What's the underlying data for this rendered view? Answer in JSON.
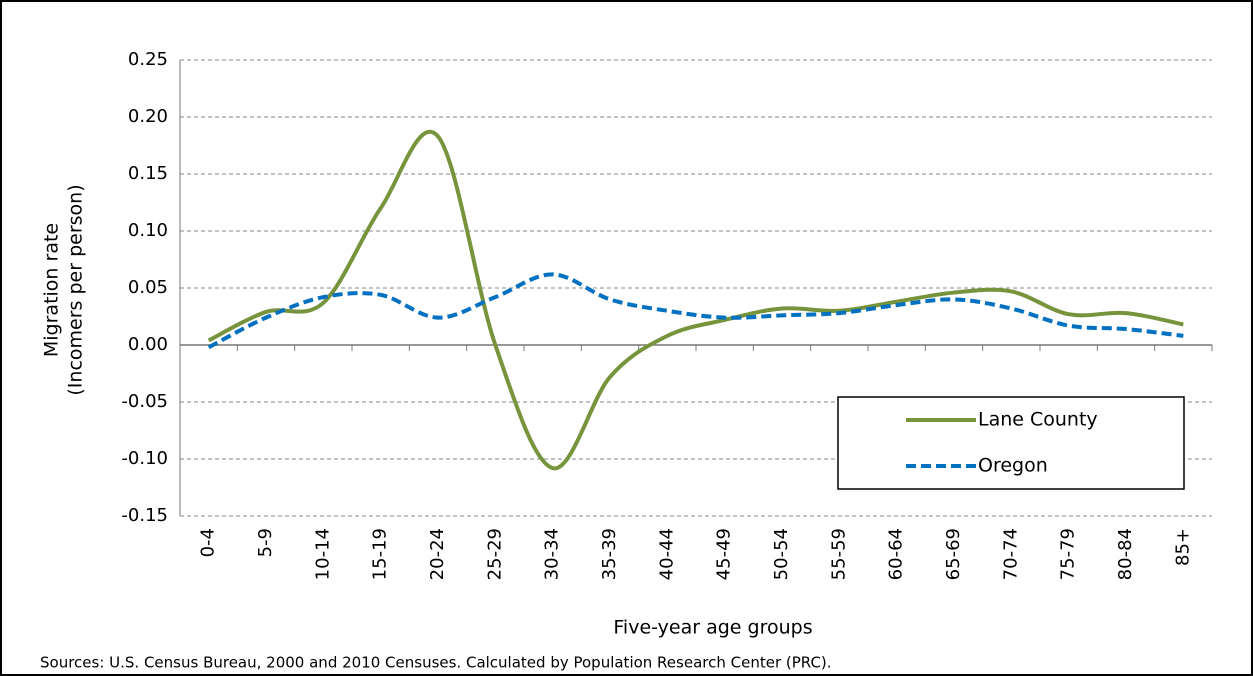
{
  "chart_data": {
    "type": "line",
    "y_label": [
      "Migration rate",
      "(Incomers per person)"
    ],
    "x_label": "Five-year age groups",
    "source": "Sources: U.S. Census Bureau, 2000 and 2010 Censuses. Calculated by Population Research  Center (PRC).",
    "categories": [
      "0-4",
      "5-9",
      "10-14",
      "15-19",
      "20-24",
      "25-29",
      "30-34",
      "35-39",
      "40-44",
      "45-49",
      "50-54",
      "55-59",
      "60-64",
      "65-69",
      "70-74",
      "75-79",
      "80-84",
      "85+"
    ],
    "series": [
      {
        "name": "Lane County",
        "color": "#77933c",
        "dash": "solid",
        "values": [
          0.004,
          0.029,
          0.037,
          0.12,
          0.183,
          0.0,
          -0.108,
          -0.028,
          0.008,
          0.022,
          0.032,
          0.03,
          0.038,
          0.046,
          0.047,
          0.027,
          0.028,
          0.018
        ]
      },
      {
        "name": "Oregon",
        "color": "#0070c0",
        "dash": "dashed",
        "values": [
          -0.002,
          0.024,
          0.042,
          0.044,
          0.024,
          0.042,
          0.062,
          0.04,
          0.03,
          0.024,
          0.026,
          0.028,
          0.035,
          0.04,
          0.032,
          0.017,
          0.014,
          0.008
        ]
      }
    ],
    "ylim": [
      -0.15,
      0.25
    ],
    "yticks": [
      -0.15,
      {
        "value": -0.1,
        "label": "-0.10"
      },
      -0.05,
      {
        "value": 0,
        "label": "0.00"
      },
      {
        "value": 0.05,
        "label": "0.05"
      },
      {
        "value": 0.1,
        "label": "0.10"
      },
      0.15,
      {
        "value": 0.2,
        "label": "0.20"
      },
      0.25
    ],
    "grid": true,
    "legend_position": "lower right"
  }
}
